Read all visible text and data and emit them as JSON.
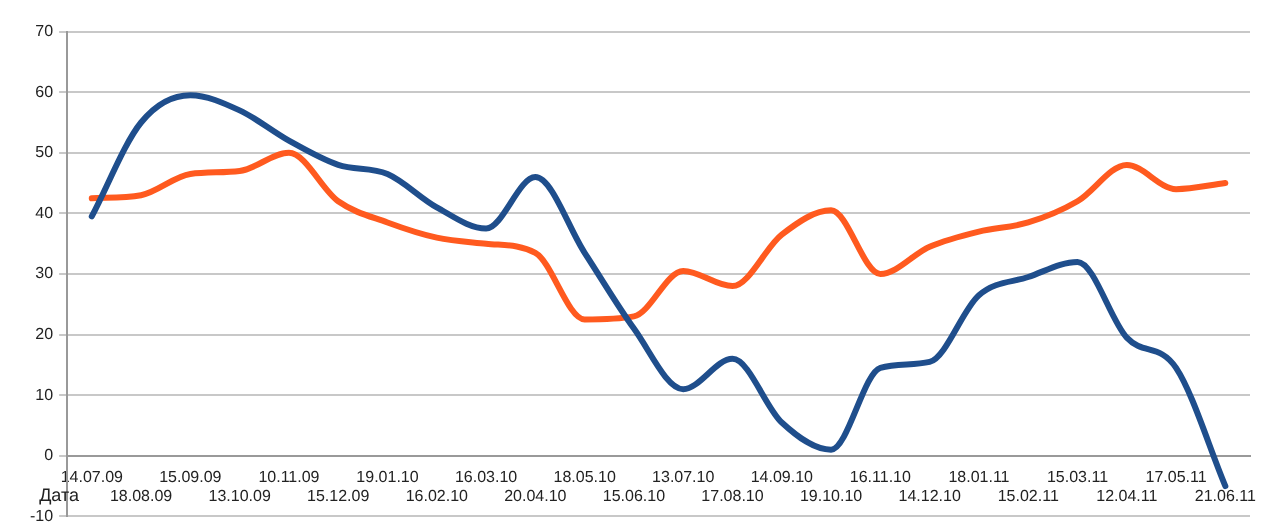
{
  "chart_data": {
    "type": "line",
    "xlabel": "Дата",
    "categories": [
      "14.07.09",
      "18.08.09",
      "15.09.09",
      "13.10.09",
      "10.11.09",
      "15.12.09",
      "19.01.10",
      "16.02.10",
      "16.03.10",
      "20.04.10",
      "18.05.10",
      "15.06.10",
      "13.07.10",
      "17.08.10",
      "14.09.10",
      "19.10.10",
      "16.11.10",
      "14.12.10",
      "18.01.11",
      "15.02.11",
      "15.03.11",
      "12.04.11",
      "17.05.11",
      "21.06.11"
    ],
    "series": [
      {
        "color": "#1f4e8c",
        "values": [
          39.5,
          55,
          59.5,
          57,
          52,
          48,
          46.5,
          41,
          37.5,
          46,
          33.5,
          21,
          11,
          16,
          5.5,
          1,
          14.5,
          15.5,
          26.5,
          29.5,
          32,
          19.5,
          14.5,
          -5
        ]
      },
      {
        "color": "#ff5a1f",
        "values": [
          42.5,
          43,
          46.5,
          47,
          50,
          42,
          38.5,
          36,
          35,
          33.5,
          22.5,
          23,
          30.5,
          28,
          36.5,
          40.5,
          30,
          34.5,
          37,
          38.5,
          42,
          48,
          44,
          45
        ]
      }
    ],
    "ylim": [
      -10,
      70
    ],
    "yticks": [
      -10,
      0,
      10,
      20,
      30,
      40,
      50,
      60,
      70
    ],
    "grid": "y",
    "legend": false,
    "marker": "none",
    "line_style": "solid"
  }
}
